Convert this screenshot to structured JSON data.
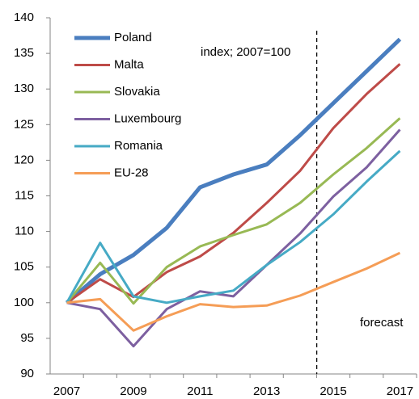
{
  "chart_data": {
    "type": "line",
    "categories": [
      "2007",
      null,
      "2009",
      null,
      "2011",
      null,
      "2013",
      null,
      "2015",
      null,
      "2017"
    ],
    "series": [
      {
        "name": "Poland",
        "color": "#4a7ebf",
        "line_width": 5,
        "values": [
          100,
          104,
          106.7,
          110.5,
          116.2,
          118,
          119.4,
          123.5,
          128,
          132.5,
          137
        ]
      },
      {
        "name": "Malta",
        "color": "#be4b48",
        "line_width": 3,
        "values": [
          100,
          103.3,
          100.8,
          104.3,
          106.5,
          109.8,
          114,
          118.5,
          124.5,
          129.3,
          133.5
        ]
      },
      {
        "name": "Slovakia",
        "color": "#98b954",
        "line_width": 3,
        "values": [
          100,
          105.6,
          99.9,
          105,
          107.9,
          109.5,
          111,
          114,
          118,
          121.7,
          125.9
        ]
      },
      {
        "name": "Luxembourg",
        "color": "#7d60a0",
        "line_width": 3,
        "values": [
          100,
          99.1,
          93.9,
          99.1,
          101.6,
          100.9,
          105.3,
          109.7,
          114.9,
          119,
          124.3
        ]
      },
      {
        "name": "Romania",
        "color": "#46aac5",
        "line_width": 3,
        "values": [
          100,
          108.4,
          100.9,
          100,
          100.9,
          101.7,
          105.3,
          108.5,
          112.4,
          117,
          121.3
        ]
      },
      {
        "name": "EU-28",
        "color": "#f59d56",
        "line_width": 3,
        "values": [
          100,
          100.5,
          96.1,
          98.1,
          99.8,
          99.4,
          99.6,
          101,
          102.9,
          104.8,
          107
        ]
      }
    ],
    "ylim": [
      90,
      140
    ],
    "yticks": [
      90,
      95,
      100,
      105,
      110,
      115,
      120,
      125,
      130,
      135,
      140
    ],
    "grid": false,
    "legend": "upper left",
    "annotations": [
      "index; 2007=100",
      "forecast"
    ]
  }
}
